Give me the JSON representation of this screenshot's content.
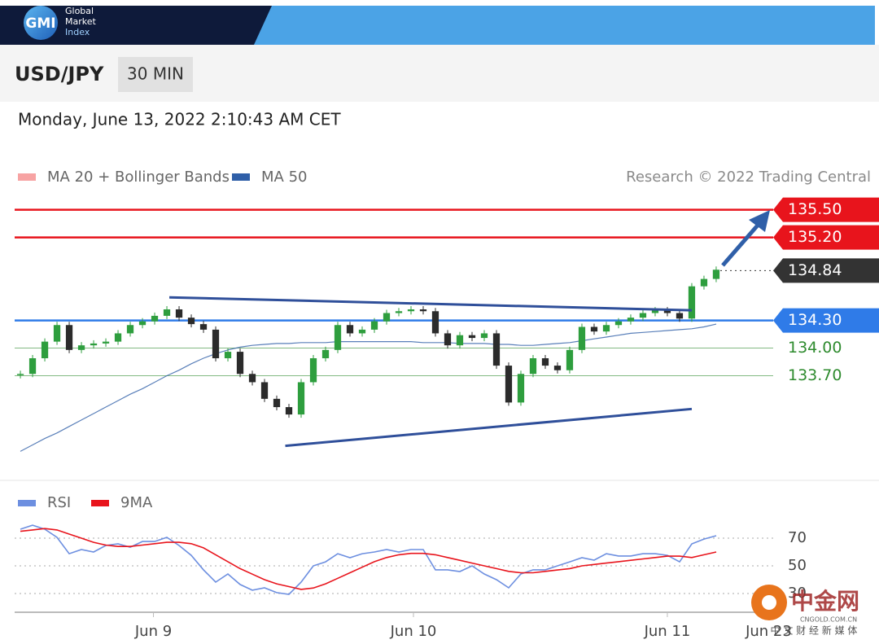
{
  "header": {
    "logo": "GMI",
    "brand": [
      "Global",
      "Market",
      "Index"
    ]
  },
  "toolbar": {
    "symbol": "USD/JPY",
    "interval": "30 MIN"
  },
  "timestamp": "Monday, June 13, 2022 2:10:43 AM CET",
  "chart_data": [
    {
      "type": "candlestick",
      "legend": [
        {
          "name": "MA 20 + Bollinger Bands",
          "color": "#f7a3a3"
        }
      ],
      "credit": "Research © 2022 Trading Central",
      "up_color": "#2e9e3e",
      "down_color": "#2b2b2b",
      "values": [
        133.72,
        133.89,
        134.07,
        134.25,
        133.98,
        134.03,
        134.05,
        134.07,
        134.16,
        134.25,
        134.29,
        134.35,
        134.42,
        134.33,
        134.26,
        134.2,
        133.89,
        133.96,
        133.72,
        133.63,
        133.45,
        133.36,
        133.28,
        133.63,
        133.89,
        133.98,
        134.25,
        134.16,
        134.2,
        134.29,
        134.38,
        134.4,
        134.42,
        134.4,
        134.16,
        134.03,
        134.14,
        134.11,
        134.16,
        133.81,
        133.41,
        133.72,
        133.89,
        133.81,
        133.76,
        133.98,
        134.23,
        134.18,
        134.25,
        134.29,
        134.33,
        134.38,
        134.41,
        134.38,
        134.32,
        134.67,
        134.75,
        134.85
      ],
      "series": [
        {
          "name": "MA 50",
          "color": "#2f5fa8",
          "values": [
            132.88,
            132.95,
            133.02,
            133.08,
            133.15,
            133.22,
            133.29,
            133.36,
            133.43,
            133.5,
            133.56,
            133.63,
            133.7,
            133.76,
            133.83,
            133.89,
            133.94,
            133.98,
            134.01,
            134.03,
            134.04,
            134.05,
            134.05,
            134.06,
            134.06,
            134.06,
            134.07,
            134.07,
            134.07,
            134.07,
            134.07,
            134.07,
            134.07,
            134.06,
            134.06,
            134.06,
            134.05,
            134.05,
            134.05,
            134.04,
            134.04,
            134.03,
            134.03,
            134.04,
            134.05,
            134.06,
            134.08,
            134.1,
            134.12,
            134.14,
            134.16,
            134.17,
            134.18,
            134.19,
            134.2,
            134.21,
            134.23,
            134.26
          ]
        }
      ],
      "trendlines": [
        {
          "from": [
            12.2,
            134.55
          ],
          "to": [
            55,
            134.41
          ],
          "color": "#2f4f9a"
        },
        {
          "from": [
            21.7,
            132.94
          ],
          "to": [
            55,
            133.34
          ],
          "color": "#2f4f9a"
        }
      ],
      "levels": [
        {
          "value": 135.5,
          "label": "135.50",
          "color": "#e8141c",
          "line": "solid",
          "tag": true
        },
        {
          "value": 135.2,
          "label": "135.20",
          "color": "#e8141c",
          "line": "solid",
          "tag": true
        },
        {
          "value": 134.84,
          "label": "134.84",
          "color": "#333333",
          "line": "dotted",
          "tag": true
        },
        {
          "value": 134.3,
          "label": "134.30",
          "color": "#2f7be8",
          "line": "solid",
          "tag": true
        },
        {
          "value": 134,
          "label": "134.00",
          "color": "#2e8b2e",
          "line": "solid",
          "tag": false
        },
        {
          "value": 133.7,
          "label": "133.70",
          "color": "#2e8b2e",
          "line": "solid",
          "tag": false
        }
      ],
      "xlim": [
        -0.47,
        61.67
      ],
      "ylim": [
        132.61,
        135.7
      ],
      "xticks": [
        {
          "value": 10.9,
          "label": "Jun 9"
        },
        {
          "value": 32.2,
          "label": "Jun 10"
        },
        {
          "value": 53,
          "label": "Jun 11"
        },
        {
          "value": 61.3,
          "label": "Jun 23"
        }
      ]
    },
    {
      "type": "line",
      "series": [
        {
          "name": "RSI",
          "color": "#6d8fe0",
          "values": [
            76.5,
            79.4,
            76.5,
            70.6,
            58.8,
            61.8,
            60,
            64.7,
            65.9,
            63.5,
            67.6,
            67.6,
            70.6,
            64.7,
            57.6,
            47.1,
            38.2,
            44.1,
            36.5,
            32.4,
            34.1,
            30.6,
            29.4,
            38.2,
            50,
            52.9,
            58.8,
            55.9,
            58.8,
            60,
            61.8,
            60,
            61.8,
            61.8,
            47.1,
            47.1,
            45.9,
            50,
            44.1,
            40,
            34.1,
            44.1,
            47.1,
            47.1,
            50,
            52.9,
            55.9,
            54.1,
            58.8,
            57.1,
            57.1,
            58.8,
            58.8,
            57.6,
            52.9,
            65.9,
            69.4,
            71.8
          ]
        },
        {
          "name": "9MA",
          "color": "#e8141c",
          "values": [
            75,
            76,
            77,
            76,
            73,
            70,
            67,
            65,
            64,
            64,
            65,
            66,
            67,
            67,
            66,
            63,
            58,
            53,
            48,
            44,
            40,
            37,
            35,
            33,
            34,
            37,
            41,
            45,
            49,
            53,
            56,
            58,
            59,
            59,
            58,
            56,
            54,
            52,
            50,
            48,
            46,
            45,
            45,
            46,
            47,
            48,
            50,
            51,
            52,
            53,
            54,
            55,
            56,
            57,
            57,
            56,
            58,
            60
          ]
        }
      ],
      "xlim": [
        -0.47,
        61.67
      ],
      "ylim": [
        17.6,
        82.4
      ],
      "yticks": [
        70,
        50,
        30
      ]
    }
  ],
  "watermark": {
    "name": "中金网",
    "site": "CNGOLD.COM.CN",
    "tagline": "中 文 财 经 新 媒 体"
  }
}
